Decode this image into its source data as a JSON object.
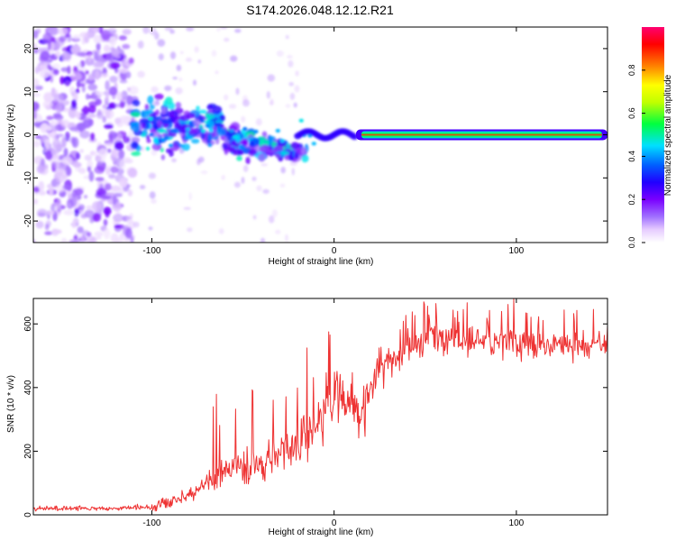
{
  "title": "S174.2026.048.12.12.R21",
  "chart_data": [
    {
      "type": "heatmap",
      "title": "S174.2026.048.12.12.R21",
      "xlabel": "Height of straight line (km)",
      "ylabel": "Frequency (Hz)",
      "xlim": [
        -165,
        150
      ],
      "ylim": [
        -25,
        25
      ],
      "xticks": [
        -100,
        0,
        100
      ],
      "yticks": [
        -20,
        -10,
        0,
        10,
        20
      ],
      "colorbar": {
        "label": "Normalized spectral amplitude",
        "range": [
          0,
          1
        ],
        "ticks": [
          0.0,
          0.2,
          0.4,
          0.6,
          0.8
        ],
        "tick_labels": [
          "0.0",
          "0.2",
          "0.4",
          "0.6",
          "0.8"
        ],
        "colormap": [
          "#ffffff",
          "#e6ccff",
          "#a070ff",
          "#7a00ff",
          "#2000ff",
          "#0060ff",
          "#00e0ff",
          "#00ff40",
          "#c0ff00",
          "#ffff00",
          "#ff8000",
          "#ff0000",
          "#ff0070"
        ]
      },
      "features": {
        "carrier_line": {
          "x_start": 0,
          "x_end": 150,
          "frequency": 0,
          "amplitude": 0.95
        },
        "noise_region": {
          "x_start": -165,
          "x_end": -110,
          "amplitude": 0.2
        },
        "scatter_region": {
          "x_start": -110,
          "x_end": -15,
          "amplitude": 0.4
        }
      }
    },
    {
      "type": "line",
      "xlabel": "Height of straight line (km)",
      "ylabel": "SNR (10 * v/v)",
      "xlim": [
        -165,
        150
      ],
      "ylim": [
        0,
        680
      ],
      "xticks": [
        -100,
        0,
        100
      ],
      "yticks": [
        0,
        200,
        400,
        600
      ],
      "color": "#ee3333",
      "series": [
        {
          "name": "SNR",
          "x": [
            -165,
            -130,
            -100,
            -90,
            -80,
            -70,
            -60,
            -50,
            -40,
            -30,
            -20,
            -10,
            0,
            10,
            15,
            20,
            30,
            40,
            50,
            60,
            80,
            100,
            120,
            150
          ],
          "values": [
            20,
            20,
            25,
            40,
            60,
            100,
            140,
            150,
            160,
            190,
            240,
            280,
            380,
            350,
            300,
            410,
            480,
            520,
            540,
            550,
            545,
            540,
            535,
            540
          ]
        }
      ]
    }
  ]
}
